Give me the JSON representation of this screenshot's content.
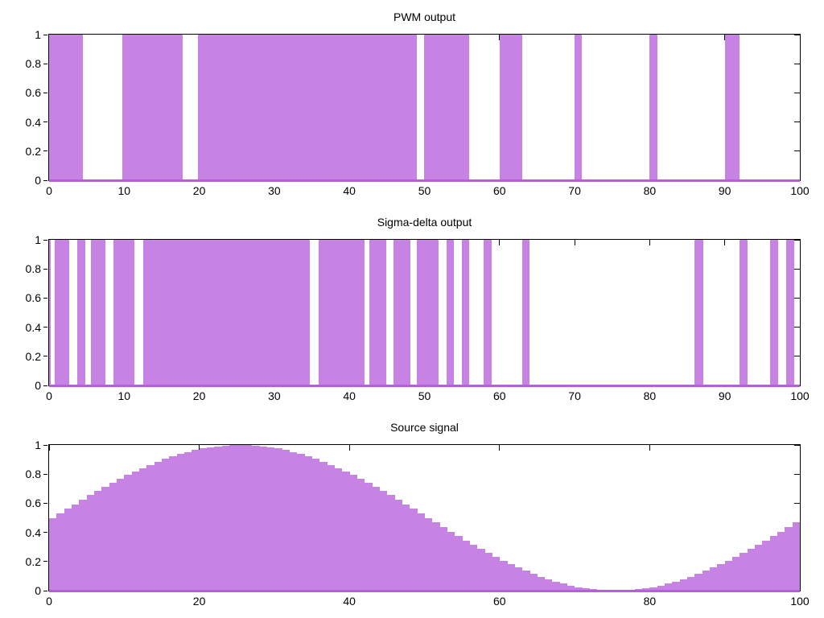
{
  "style": {
    "fill_color": "#c783e3",
    "line_color": "#b55fd9",
    "frame_color": "#000000",
    "text_color": "#000000",
    "background": "#ffffff"
  },
  "chart_data": [
    {
      "type": "bar",
      "subtype": "pulse-train",
      "title": "PWM output",
      "xlim": [
        0,
        100
      ],
      "ylim": [
        0,
        1
      ],
      "grid": false,
      "legend": "none",
      "x_ticks": [
        {
          "v": 0,
          "label": "0"
        },
        {
          "v": 10,
          "label": "10"
        },
        {
          "v": 20,
          "label": "20"
        },
        {
          "v": 30,
          "label": "30"
        },
        {
          "v": 40,
          "label": "40"
        },
        {
          "v": 50,
          "label": "50"
        },
        {
          "v": 60,
          "label": "60"
        },
        {
          "v": 70,
          "label": "70"
        },
        {
          "v": 80,
          "label": "80"
        },
        {
          "v": 90,
          "label": "90"
        },
        {
          "v": 100,
          "label": "100"
        }
      ],
      "y_ticks": [
        {
          "v": 0,
          "label": "0"
        },
        {
          "v": 0.2,
          "label": "0.2"
        },
        {
          "v": 0.4,
          "label": "0.4"
        },
        {
          "v": 0.6,
          "label": "0.6"
        },
        {
          "v": 0.8,
          "label": "0.8"
        },
        {
          "v": 1,
          "label": "1"
        }
      ],
      "pulses": [
        [
          0,
          4.5
        ],
        [
          9.8,
          17.8
        ],
        [
          19.8,
          49.0
        ],
        [
          49.9,
          55.9
        ],
        [
          60,
          63
        ],
        [
          70,
          71
        ],
        [
          80,
          81
        ],
        [
          90,
          92
        ]
      ]
    },
    {
      "type": "bar",
      "subtype": "pulse-train",
      "title": "Sigma-delta output",
      "xlim": [
        0,
        100
      ],
      "ylim": [
        0,
        1
      ],
      "grid": false,
      "legend": "none",
      "x_ticks": [
        {
          "v": 0,
          "label": "0"
        },
        {
          "v": 10,
          "label": "10"
        },
        {
          "v": 20,
          "label": "20"
        },
        {
          "v": 30,
          "label": "30"
        },
        {
          "v": 40,
          "label": "40"
        },
        {
          "v": 50,
          "label": "50"
        },
        {
          "v": 60,
          "label": "60"
        },
        {
          "v": 70,
          "label": "70"
        },
        {
          "v": 80,
          "label": "80"
        },
        {
          "v": 90,
          "label": "90"
        },
        {
          "v": 100,
          "label": "100"
        }
      ],
      "y_ticks": [
        {
          "v": 0,
          "label": "0"
        },
        {
          "v": 0.2,
          "label": "0.2"
        },
        {
          "v": 0.4,
          "label": "0.4"
        },
        {
          "v": 0.6,
          "label": "0.6"
        },
        {
          "v": 0.8,
          "label": "0.8"
        },
        {
          "v": 1,
          "label": "1"
        }
      ],
      "pulses": [
        [
          0,
          0.2
        ],
        [
          0.75,
          2.7
        ],
        [
          3.75,
          4.8
        ],
        [
          5.6,
          7.5
        ],
        [
          8.6,
          11.4
        ],
        [
          12.5,
          34.75
        ],
        [
          35.9,
          42.0
        ],
        [
          42.7,
          44.9
        ],
        [
          45.9,
          48.1
        ],
        [
          48.95,
          51.9
        ],
        [
          52.9,
          53.9
        ],
        [
          55.0,
          56.0
        ],
        [
          57.9,
          58.9
        ],
        [
          63.0,
          64.0
        ],
        [
          86.0,
          87.1
        ],
        [
          92.0,
          93.0
        ],
        [
          96.0,
          97.1
        ],
        [
          98.2,
          99.3
        ]
      ]
    },
    {
      "type": "bar",
      "subtype": "staircase-signal",
      "title": "Source signal",
      "xlim": [
        0,
        100
      ],
      "ylim": [
        0,
        1
      ],
      "grid": false,
      "legend": "none",
      "bar_width": 1,
      "x_ticks": [
        {
          "v": 0,
          "label": "0"
        },
        {
          "v": 20,
          "label": "20"
        },
        {
          "v": 40,
          "label": "40"
        },
        {
          "v": 60,
          "label": "60"
        },
        {
          "v": 80,
          "label": "80"
        },
        {
          "v": 100,
          "label": "100"
        }
      ],
      "y_ticks": [
        {
          "v": 0,
          "label": "0"
        },
        {
          "v": 0.2,
          "label": "0.2"
        },
        {
          "v": 0.4,
          "label": "0.4"
        },
        {
          "v": 0.6,
          "label": "0.6"
        },
        {
          "v": 0.8,
          "label": "0.8"
        },
        {
          "v": 1,
          "label": "1"
        }
      ],
      "values": [
        0.5,
        0.531,
        0.563,
        0.594,
        0.624,
        0.655,
        0.684,
        0.713,
        0.741,
        0.768,
        0.794,
        0.819,
        0.842,
        0.864,
        0.885,
        0.905,
        0.922,
        0.938,
        0.952,
        0.965,
        0.976,
        0.984,
        0.991,
        0.996,
        0.999,
        1.0,
        0.999,
        0.996,
        0.991,
        0.984,
        0.976,
        0.965,
        0.952,
        0.938,
        0.922,
        0.905,
        0.885,
        0.864,
        0.842,
        0.819,
        0.794,
        0.768,
        0.741,
        0.713,
        0.684,
        0.655,
        0.624,
        0.594,
        0.563,
        0.531,
        0.5,
        0.469,
        0.437,
        0.406,
        0.376,
        0.345,
        0.316,
        0.287,
        0.259,
        0.232,
        0.206,
        0.181,
        0.158,
        0.136,
        0.115,
        0.095,
        0.078,
        0.062,
        0.048,
        0.035,
        0.024,
        0.016,
        0.009,
        0.004,
        0.001,
        0.0,
        0.001,
        0.004,
        0.009,
        0.016,
        0.024,
        0.035,
        0.048,
        0.062,
        0.078,
        0.095,
        0.115,
        0.136,
        0.158,
        0.181,
        0.206,
        0.232,
        0.259,
        0.287,
        0.316,
        0.345,
        0.376,
        0.406,
        0.437,
        0.469
      ]
    }
  ]
}
